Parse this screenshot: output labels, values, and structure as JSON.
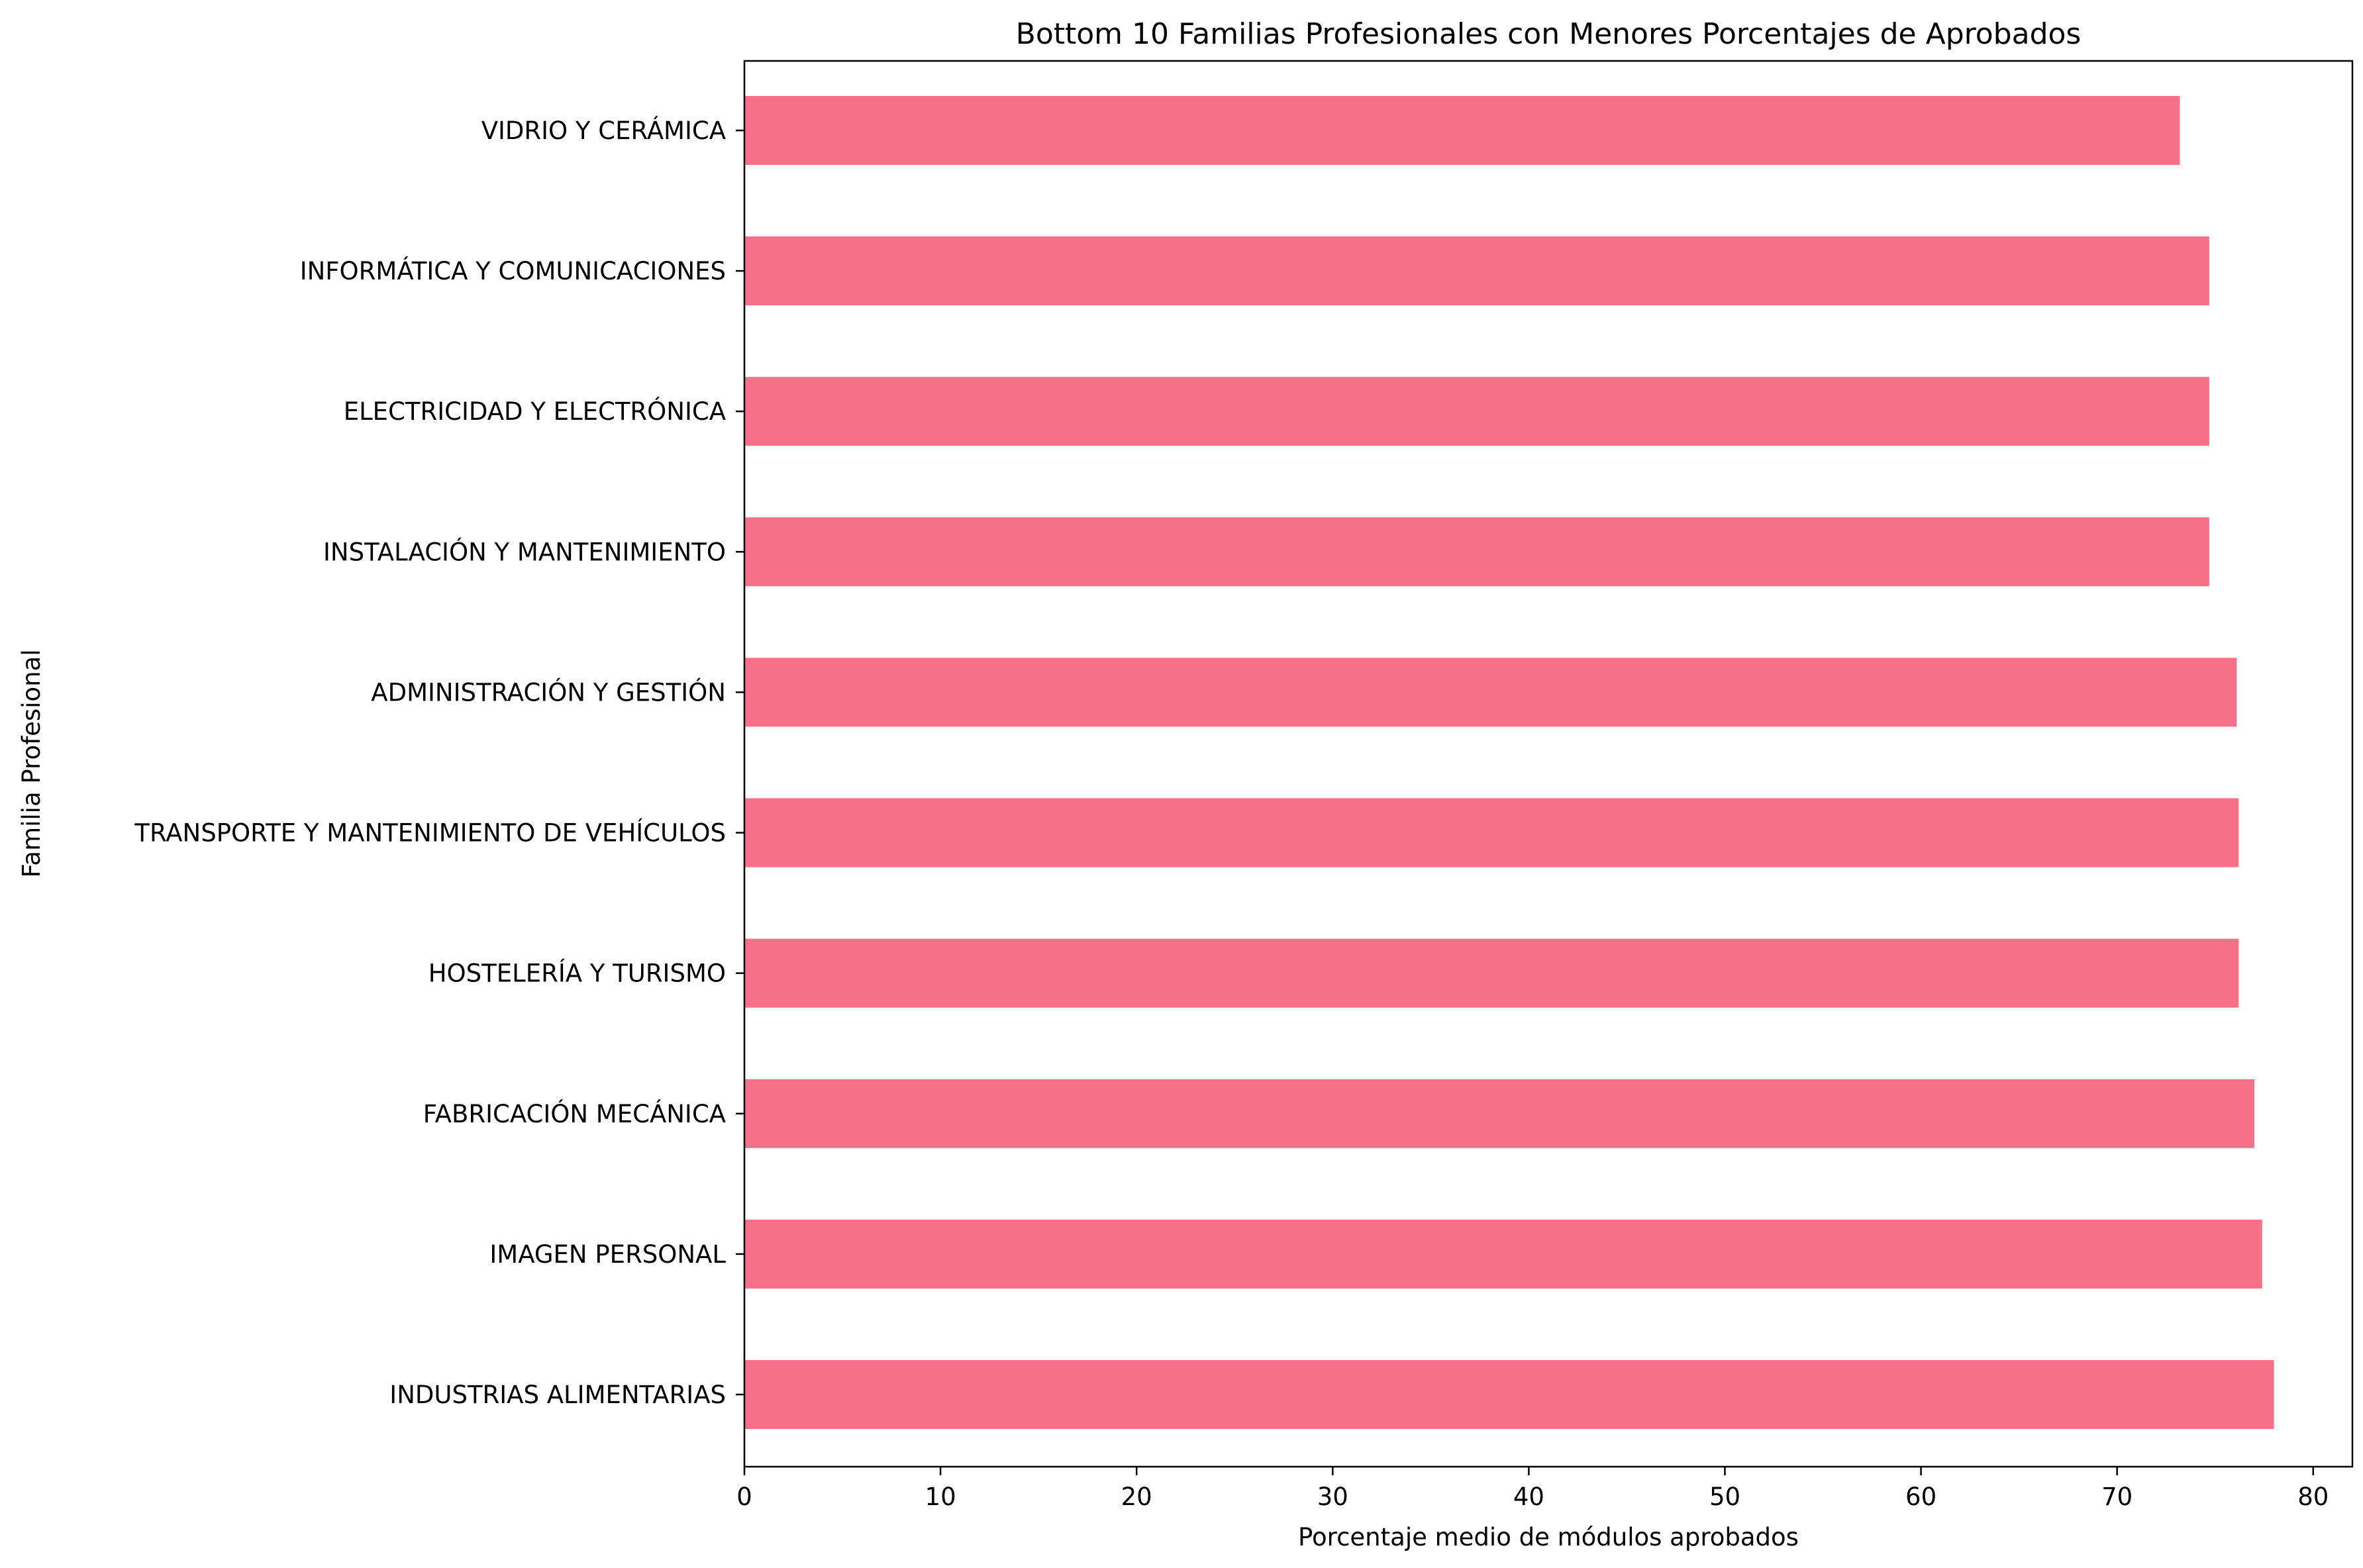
{
  "chart_data": {
    "type": "bar",
    "orientation": "horizontal",
    "title": "Bottom 10 Familias Profesionales con Menores Porcentajes de Aprobados",
    "xlabel": "Porcentaje medio de módulos aprobados",
    "ylabel": "Familia Profesional",
    "xlim": [
      0,
      82
    ],
    "xticks": [
      0,
      10,
      20,
      30,
      40,
      50,
      60,
      70,
      80
    ],
    "grid": false,
    "bar_color": "#f67088",
    "categories": [
      "VIDRIO Y CERÁMICA",
      "INFORMÁTICA Y COMUNICACIONES",
      "ELECTRICIDAD Y ELECTRÓNICA",
      "INSTALACIÓN Y MANTENIMIENTO",
      "ADMINISTRACIÓN Y GESTIÓN",
      "TRANSPORTE Y MANTENIMIENTO DE VEHÍCULOS",
      "HOSTELERÍA Y TURISMO",
      "FABRICACIÓN MECÁNICA",
      "IMAGEN PERSONAL",
      "INDUSTRIAS ALIMENTARIAS"
    ],
    "values": [
      73.2,
      74.7,
      74.7,
      74.7,
      76.1,
      76.2,
      76.2,
      77.0,
      77.4,
      78.0
    ]
  }
}
